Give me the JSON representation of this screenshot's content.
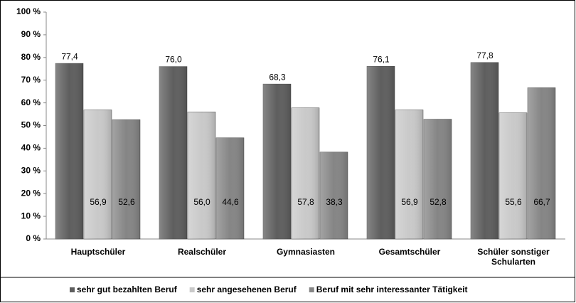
{
  "chart_data": {
    "type": "bar",
    "categories": [
      "Hauptschüler",
      "Realschüler",
      "Gymnasiasten",
      "Gesamtschüler",
      "Schüler sonstiger Schularten"
    ],
    "series": [
      {
        "name": "sehr gut bezahlten Beruf",
        "color": "#5e5e5e",
        "values": [
          77.4,
          76.0,
          68.3,
          76.1,
          77.8
        ],
        "value_labels": [
          "77,4",
          "76,0",
          "68,3",
          "76,1",
          "77,8"
        ]
      },
      {
        "name": "sehr angesehenen Beruf",
        "color": "#c9c9c9",
        "values": [
          56.9,
          56.0,
          57.8,
          56.9,
          55.6
        ],
        "value_labels": [
          "56,9",
          "56,0",
          "57,8",
          "56,9",
          "55,6"
        ]
      },
      {
        "name": "Beruf mit sehr interessanter Tätigkeit",
        "color": "#858585",
        "values": [
          52.6,
          44.6,
          38.3,
          52.8,
          66.7
        ],
        "value_labels": [
          "52,6",
          "44,6",
          "38,3",
          "52,8",
          "66,7"
        ]
      }
    ],
    "ylim": [
      0,
      100
    ],
    "yticks": [
      {
        "value": 0,
        "label": "0 %"
      },
      {
        "value": 10,
        "label": "10 %"
      },
      {
        "value": 20,
        "label": "20 %"
      },
      {
        "value": 30,
        "label": "30 %"
      },
      {
        "value": 40,
        "label": "40 %"
      },
      {
        "value": 50,
        "label": "50 %"
      },
      {
        "value": 60,
        "label": "60 %"
      },
      {
        "value": 70,
        "label": "70 %"
      },
      {
        "value": 80,
        "label": "80 %"
      },
      {
        "value": 90,
        "label": "90 %"
      },
      {
        "value": 100,
        "label": "100 %"
      }
    ],
    "grid": false,
    "legend": "bottom"
  }
}
